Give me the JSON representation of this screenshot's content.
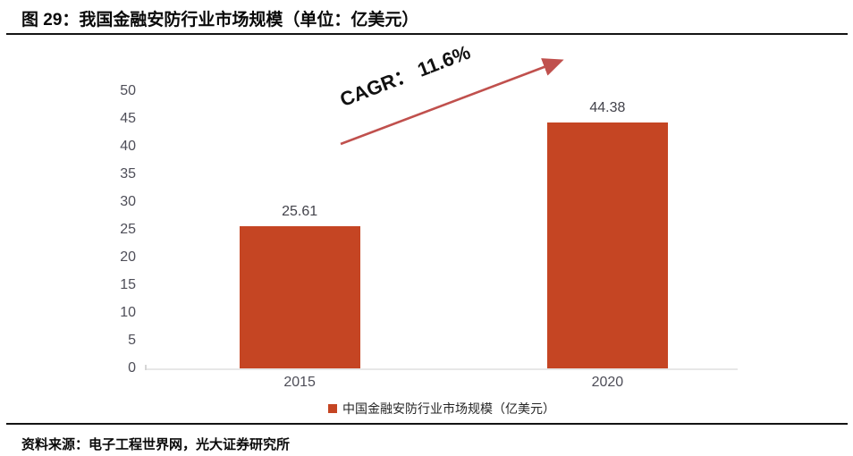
{
  "header": {
    "title": "图 29：我国金融安防行业市场规模（单位：亿美元）"
  },
  "chart_data": {
    "type": "bar",
    "title": "图 29：我国金融安防行业市场规模（单位：亿美元）",
    "categories": [
      "2015",
      "2020"
    ],
    "series": [
      {
        "name": "中国金融安防行业市场规模（亿美元）",
        "values": [
          25.61,
          44.38
        ],
        "color": "#C54523"
      }
    ],
    "value_labels": [
      "25.61",
      "44.38"
    ],
    "xlabel": "",
    "ylabel": "",
    "ylim": [
      0,
      50
    ],
    "yticks": [
      0,
      5,
      10,
      15,
      20,
      25,
      30,
      35,
      40,
      45,
      50
    ],
    "grid": false,
    "legend": {
      "label": "中国金融安防行业市场规模（亿美元）",
      "position": "bottom",
      "marker_color": "#C54523"
    },
    "annotation": {
      "text": "CAGR： 11.6%",
      "type": "trend-arrow",
      "color": "#C0504D"
    }
  },
  "footer": {
    "source": "资料来源：电子工程世界网，光大证券研究所"
  }
}
